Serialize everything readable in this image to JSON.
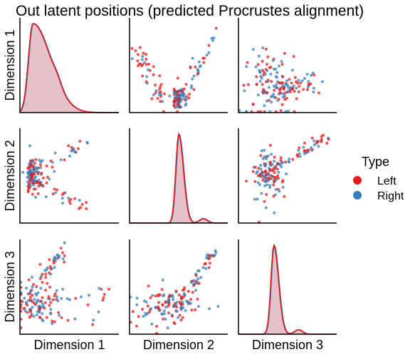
{
  "chart_data": {
    "type": "scatter",
    "title": "Out latent positions (predicted Procrustes alignment)",
    "variables": [
      "Dimension 1",
      "Dimension 2",
      "Dimension 3"
    ],
    "hue": {
      "title": "Type",
      "levels": [
        {
          "name": "Left",
          "color": "#e41a1c"
        },
        {
          "name": "Right",
          "color": "#377eb8"
        }
      ]
    },
    "diagonal": "kde",
    "offdiagonal": "scatter",
    "grid": false,
    "legend_position": "right",
    "density_peaks": {
      "Dimension 1": {
        "x": 0.13,
        "shape": "right-skewed"
      },
      "Dimension 2": {
        "x": 0.5,
        "shape": "sharp"
      },
      "Dimension 3": {
        "x": 0.36,
        "shape": "sharp"
      }
    }
  }
}
